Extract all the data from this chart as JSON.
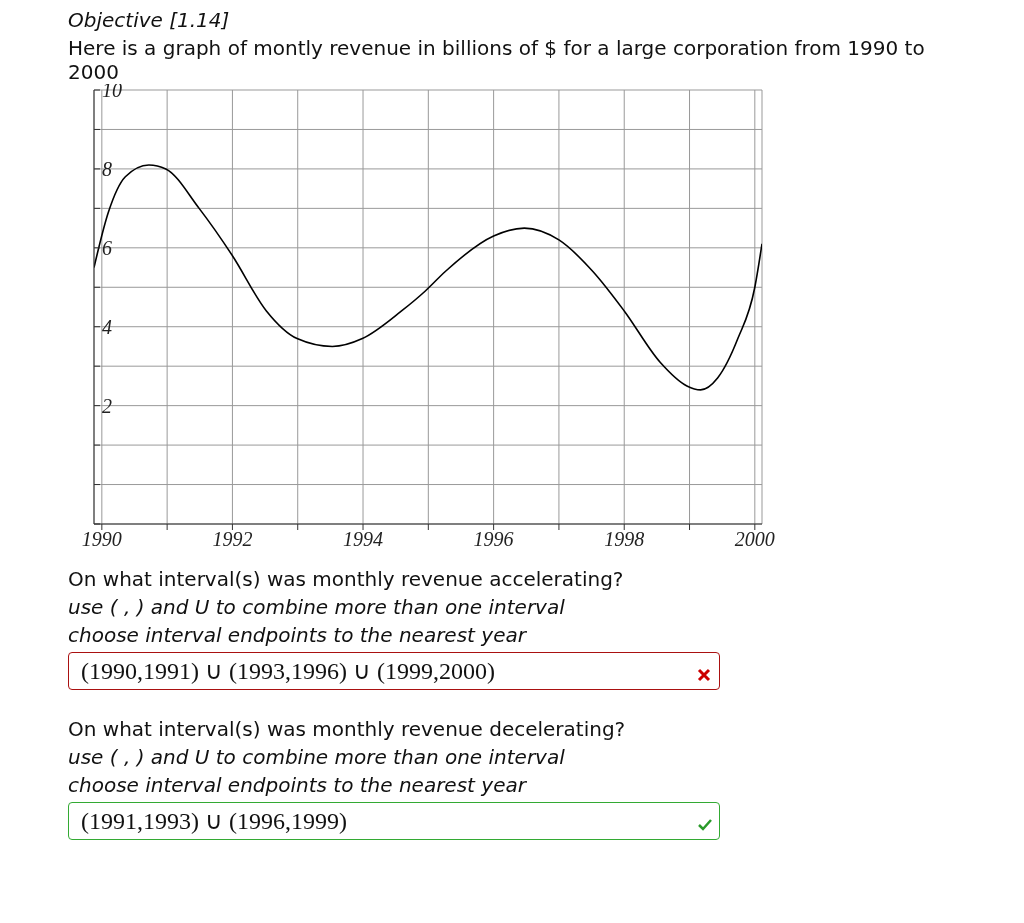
{
  "chart_data": {
    "type": "line",
    "title": "Objective [1.14]",
    "subtitle": "Here is a graph of montly revenue in billions of $ for a large corporation from 1990 to 2000",
    "x": [
      1989.88,
      1990.1,
      1990.36,
      1990.72,
      1990.98,
      1991.49,
      1992.0,
      1992.52,
      1992.99,
      1993.53,
      1993.99,
      1994.59,
      1994.95,
      1995.26,
      1996.0,
      1996.47,
      1997.0,
      1997.52,
      1998.0,
      1998.55,
      1998.96,
      1999.17,
      1999.43,
      1999.74,
      2000.0,
      2000.11
    ],
    "series": [
      {
        "color": "#000000",
        "values": [
          5.5,
          6.9,
          7.8,
          8.1,
          8.0,
          7.0,
          5.8,
          4.4,
          3.7,
          3.5,
          3.7,
          4.4,
          4.9,
          5.4,
          6.3,
          6.5,
          6.2,
          5.4,
          4.4,
          3.1,
          2.5,
          2.4,
          2.7,
          3.7,
          5.0,
          6.1
        ]
      }
    ],
    "xlim": [
      1989.88,
      2000.11
    ],
    "ylim": [
      -1,
      10
    ],
    "xticks": [
      1990,
      {
        "value": 1991,
        "label": null
      },
      1992,
      {
        "value": 1993,
        "label": null
      },
      1994,
      {
        "value": 1995,
        "label": null
      },
      1996,
      {
        "value": 1997,
        "label": null
      },
      1998,
      {
        "value": 1999,
        "label": null
      },
      2000
    ],
    "yticks": [
      {
        "value": -1,
        "label": null
      },
      {
        "value": 0,
        "label": null
      },
      {
        "value": 1,
        "label": null
      },
      2,
      {
        "value": 3,
        "label": null
      },
      4,
      {
        "value": 5,
        "label": null
      },
      6,
      {
        "value": 7,
        "label": null
      },
      8,
      {
        "value": 9,
        "label": null
      },
      10
    ],
    "grid": true,
    "marker": "none",
    "line_style": "solid",
    "annotations": [
      "On what interval(s) was monthly revenue accelerating?",
      "use ( , ) and U to combine more than one interval",
      "choose interval endpoints to the nearest year",
      "(1990,1991) ∪ (1993,1996) ∪ (1999,2000)",
      "On what interval(s) was monthly revenue decelerating?",
      "use ( , ) and U to combine more than one interval",
      "choose interval endpoints to the nearest year",
      "(1991,1993) ∪ (1996,1999)"
    ]
  }
}
